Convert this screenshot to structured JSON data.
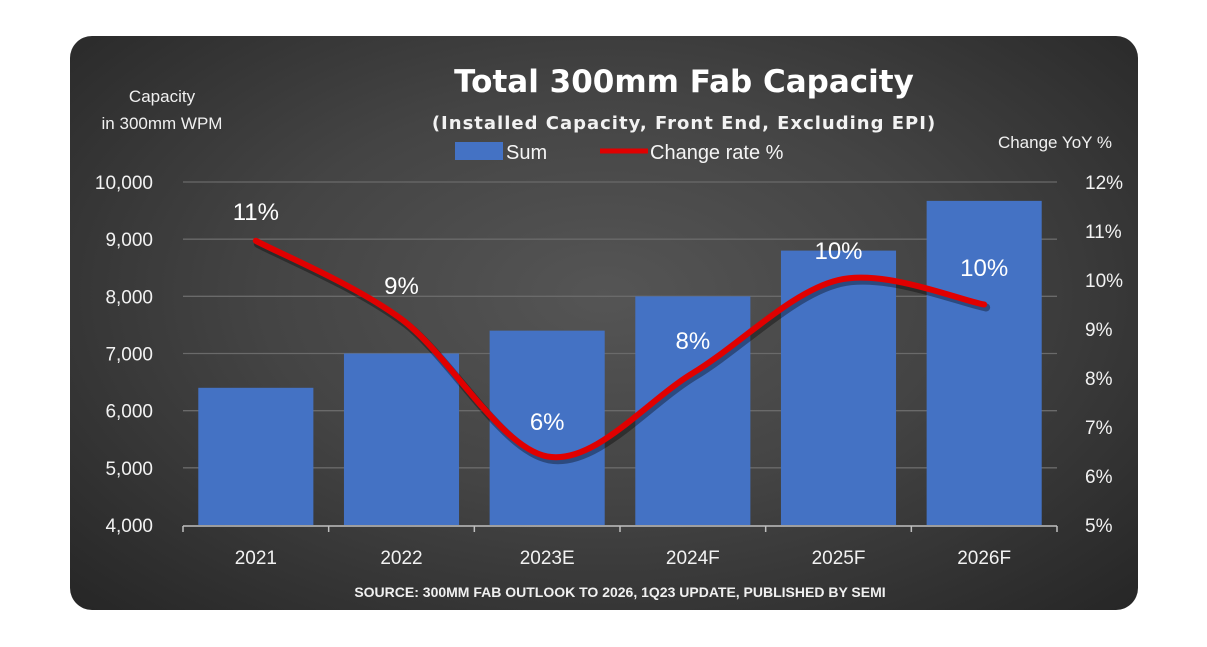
{
  "chart_data": {
    "type": "bar+line",
    "title": "Total 300mm Fab Capacity",
    "subtitle": "(Installed Capacity, Front End, Excluding EPI)",
    "ylabel_left": [
      "Capacity",
      "in 300mm WPM"
    ],
    "ylabel_right": "Change YoY %",
    "categories": [
      "2021",
      "2022",
      "2023E",
      "2024F",
      "2025F",
      "2026F"
    ],
    "series": [
      {
        "name": "Sum",
        "type": "bar",
        "axis": "left",
        "color": "#4472C4",
        "values": [
          6400,
          7000,
          7400,
          8000,
          8800,
          9670
        ]
      },
      {
        "name": "Change rate %",
        "type": "line",
        "axis": "right",
        "color": "#E00000",
        "values": [
          10.8,
          9.2,
          6.4,
          8.1,
          10.0,
          9.5
        ],
        "labels": [
          "11%",
          "9%",
          "6%",
          "8%",
          "10%",
          "10%"
        ]
      }
    ],
    "ylim_left": [
      4000,
      10000
    ],
    "yticks_left": [
      "4,000",
      "5,000",
      "6,000",
      "7,000",
      "8,000",
      "9,000",
      "10,000"
    ],
    "ylim_right": [
      5,
      12
    ],
    "yticks_right": [
      "5%",
      "6%",
      "7%",
      "8%",
      "9%",
      "10%",
      "11%",
      "12%"
    ],
    "grid": true,
    "legend": "top-center",
    "source": "SOURCE: 300MM FAB OUTLOOK TO 2026, 1Q23 UPDATE, PUBLISHED BY SEMI"
  },
  "colors": {
    "background": "#3d3d3d",
    "bar": "#4472C4",
    "line": "#E00000",
    "text": "#ffffff"
  }
}
